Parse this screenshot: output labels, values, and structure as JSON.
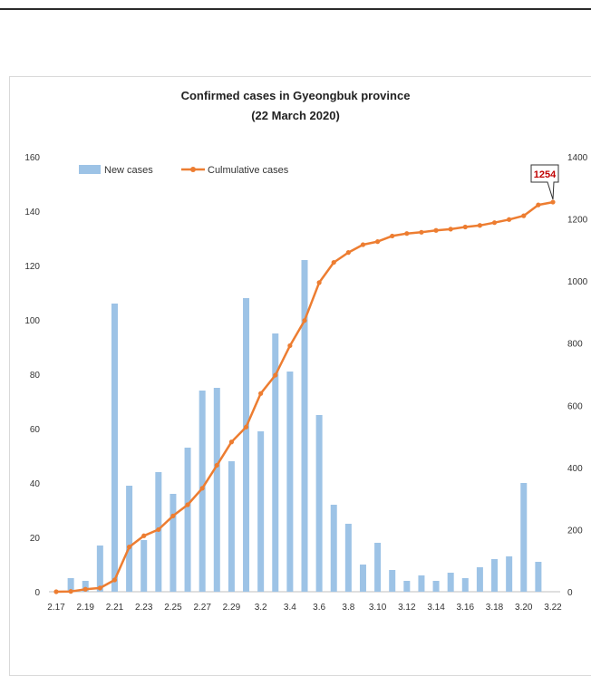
{
  "chart_data": {
    "type": "bar+line",
    "title_line1": "Confirmed cases in Gyeongbuk province",
    "title_line2": "(22 March 2020)",
    "x_dates": [
      "2.17",
      "2.18",
      "2.19",
      "2.20",
      "2.21",
      "2.22",
      "2.23",
      "2.24",
      "2.25",
      "2.26",
      "2.27",
      "2.28",
      "2.29",
      "3.1",
      "3.2",
      "3.3",
      "3.4",
      "3.5",
      "3.6",
      "3.7",
      "3.8",
      "3.9",
      "3.10",
      "3.11",
      "3.12",
      "3.13",
      "3.14",
      "3.15",
      "3.16",
      "3.17",
      "3.18",
      "3.19",
      "3.20",
      "3.21",
      "3.22"
    ],
    "x_tick_labels": [
      "2.17",
      "2.19",
      "2.21",
      "2.23",
      "2.25",
      "2.27",
      "2.29",
      "3.2",
      "3.4",
      "3.6",
      "3.8",
      "3.10",
      "3.12",
      "3.14",
      "3.16",
      "3.18",
      "3.20",
      "3.22"
    ],
    "series": [
      {
        "name": "New cases",
        "axis": "left",
        "color": "#9dc3e6",
        "values": [
          0,
          5,
          4,
          17,
          106,
          39,
          19,
          44,
          36,
          53,
          74,
          75,
          48,
          108,
          59,
          95,
          81,
          122,
          65,
          32,
          25,
          10,
          18,
          8,
          4,
          6,
          4,
          7,
          5,
          9,
          12,
          13,
          40,
          11,
          0
        ]
      },
      {
        "name": "Culmulative cases",
        "axis": "right",
        "color": "#ed7d31",
        "values": [
          0,
          1,
          8,
          12,
          38,
          144,
          180,
          200,
          244,
          280,
          333,
          407,
          482,
          530,
          638,
          697,
          792,
          873,
          995,
          1060,
          1092,
          1117,
          1127,
          1145,
          1153,
          1157,
          1163,
          1167,
          1174,
          1179,
          1188,
          1198,
          1210,
          1245,
          1254
        ]
      }
    ],
    "y_left": {
      "min": 0,
      "max": 160,
      "ticks": [
        "0",
        "20",
        "40",
        "60",
        "80",
        "100",
        "120",
        "140",
        "160"
      ]
    },
    "y_right": {
      "min": 0,
      "max": 1400,
      "ticks": [
        "0",
        "200",
        "400",
        "600",
        "800",
        "1000",
        "1200",
        "1400"
      ]
    },
    "legend_position": "top-left",
    "callout": {
      "text": "1254",
      "value": 1254
    }
  }
}
